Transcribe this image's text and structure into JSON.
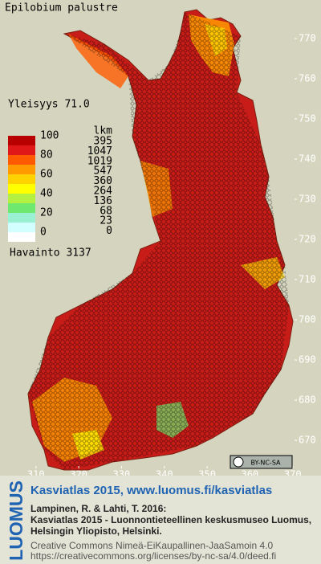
{
  "title": "Epilobium palustre",
  "frequency": "Yleisyys 71.0",
  "legend": {
    "scale_labels": [
      "100",
      "80",
      "60",
      "40",
      "20",
      "0"
    ],
    "count_header": "lkm",
    "counts": [
      "395",
      "1047",
      "1019",
      "547",
      "360",
      "264",
      "136",
      "68",
      "23",
      "0"
    ],
    "colors": [
      "#b80000",
      "#e01818",
      "#ff5a00",
      "#ff9a00",
      "#ffd200",
      "#ffff00",
      "#b4f040",
      "#6ee86e",
      "#9af0d2",
      "#d2ffff"
    ],
    "observations": "Havainto 3137"
  },
  "map": {
    "xlim": [
      301.6,
      376.6
    ],
    "ylim": [
      663,
      779.6
    ],
    "xticks": [
      310,
      320,
      330,
      340,
      350,
      360,
      370
    ],
    "yticks": [
      670,
      680,
      690,
      700,
      710,
      720,
      730,
      740,
      750,
      760,
      770
    ]
  },
  "license_badge": "BY-NC-SA",
  "footer": {
    "brand": "LUOMUS",
    "headline": "Kasviatlas 2015, www.luomus.fi/kasviatlas",
    "citation": [
      "Lampinen, R. & Lahti, T. 2016:",
      "Kasviatlas 2015 - Luonnontieteellinen keskusmuseo Luomus,",
      "Helsingin Yliopisto, Helsinki."
    ],
    "license": [
      "Creative Commons Nimeä-EiKaupallinen-JaaSamoin 4.0",
      "https://creativecommons.org/licenses/by-nc-sa/4.0/deed.fi"
    ]
  }
}
